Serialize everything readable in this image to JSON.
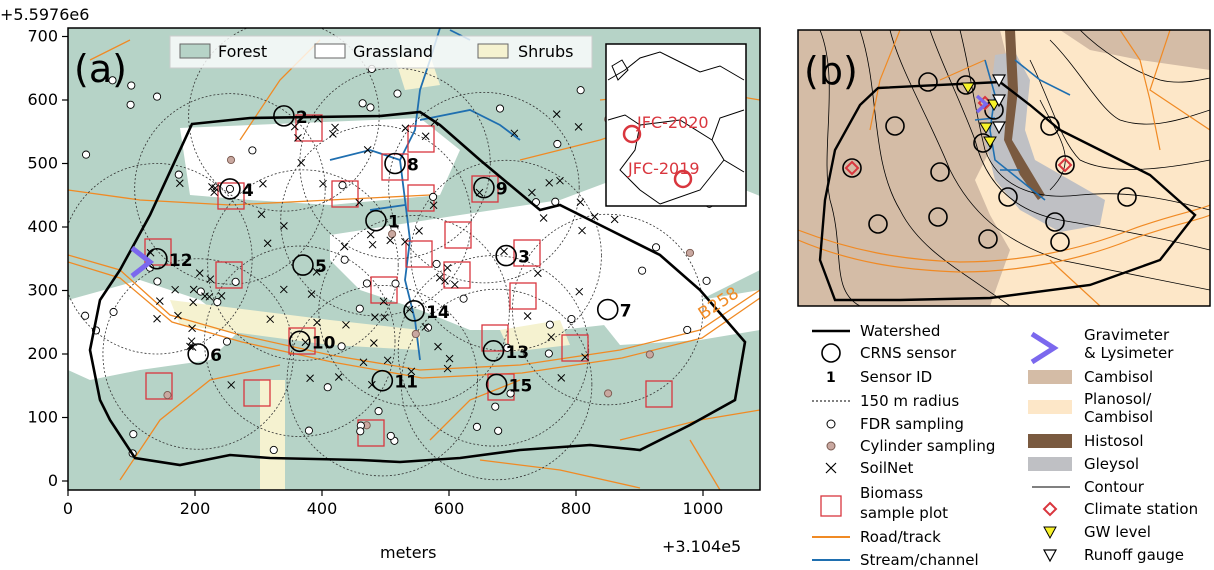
{
  "panel_a": {
    "label": "(a)",
    "y_offset_label": "+5.5976e6",
    "x_offset_label": "+3.104e5",
    "x_axis_label": "meters",
    "x_ticks": [
      "0",
      "200",
      "400",
      "600",
      "800",
      "1000"
    ],
    "y_ticks": [
      "0",
      "100",
      "200",
      "300",
      "400",
      "500",
      "600",
      "700"
    ],
    "legend": [
      "Forest",
      "Grassland",
      "Shrubs"
    ],
    "road_label": "B258",
    "sensors": [
      {
        "id": "1",
        "x": 485,
        "y": 410
      },
      {
        "id": "2",
        "x": 340,
        "y": 575
      },
      {
        "id": "3",
        "x": 690,
        "y": 355
      },
      {
        "id": "4",
        "x": 255,
        "y": 460
      },
      {
        "id": "5",
        "x": 370,
        "y": 340
      },
      {
        "id": "6",
        "x": 205,
        "y": 200
      },
      {
        "id": "7",
        "x": 850,
        "y": 270
      },
      {
        "id": "8",
        "x": 515,
        "y": 500
      },
      {
        "id": "9",
        "x": 655,
        "y": 462
      },
      {
        "id": "10",
        "x": 365,
        "y": 220
      },
      {
        "id": "11",
        "x": 495,
        "y": 158
      },
      {
        "id": "12",
        "x": 140,
        "y": 350
      },
      {
        "id": "13",
        "x": 670,
        "y": 205
      },
      {
        "id": "14",
        "x": 545,
        "y": 268
      },
      {
        "id": "15",
        "x": 675,
        "y": 152
      }
    ],
    "inset": {
      "labels": [
        "JFC-2020",
        "JFC-2019"
      ]
    }
  },
  "panel_b": {
    "label": "(b)"
  },
  "legend": {
    "column1": [
      "Watershed",
      "CRNS sensor",
      "Sensor ID",
      "150 m radius",
      "FDR sampling",
      "Cylinder sampling",
      "SoilNet",
      "Biomass",
      "sample plot",
      "Road/track",
      "Stream/channel"
    ],
    "sensor_id_symbol": "1",
    "column2": [
      "Gravimeter",
      "& Lysimeter",
      "Cambisol",
      "Planosol/",
      "Cambisol",
      "Histosol",
      "Gleysol",
      "Contour",
      "Climate station",
      "GW level",
      "Runoff gauge"
    ]
  },
  "colors": {
    "forest": "#b6d3c7",
    "grassland": "#ffffff",
    "shrubs": "#f5f2d0",
    "road": "#f08a24",
    "stream": "#1f6fb0",
    "biomass": "#d9363e",
    "cambisol": "#d4bca6",
    "planosol": "#fde7c8",
    "histosol": "#7a5a40",
    "gleysol": "#bfc0c4",
    "gravimeter": "#7b68ee",
    "climate": "#d9363e",
    "gw": "#f7f22a",
    "cylinder": "#c9a8a0"
  }
}
